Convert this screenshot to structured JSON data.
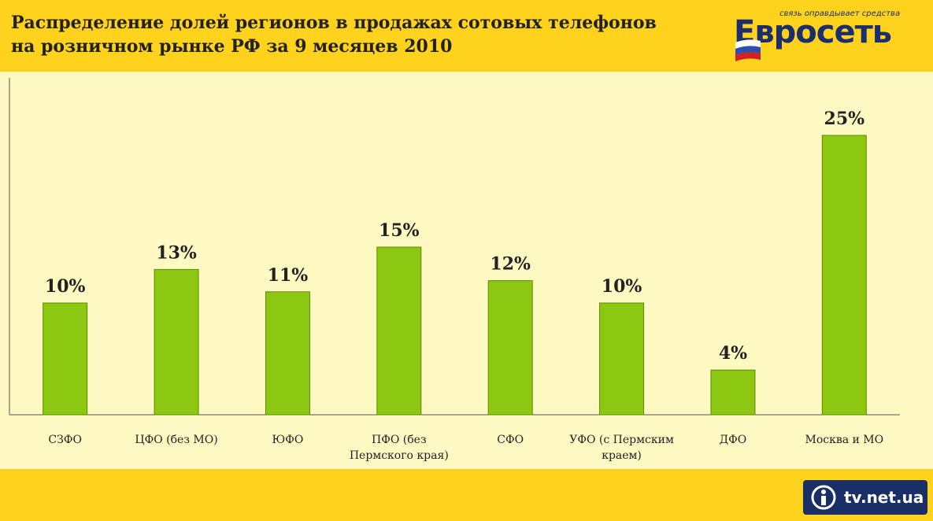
{
  "title": {
    "line1": "Распределение долей регионов в продажах сотовых телефонов",
    "line2": "на розничном рынке РФ за 9 месяцев 2010"
  },
  "logo": {
    "tagline": "связь оправдывает средства",
    "text": "Евросеть"
  },
  "watermark": {
    "text": "tv.net.ua"
  },
  "chart_data": {
    "type": "bar",
    "categories": [
      [
        "СЗФО"
      ],
      [
        "ЦФО (без МО)"
      ],
      [
        "ЮФО"
      ],
      [
        "ПФО (без",
        "Пермского края)"
      ],
      [
        "СФО"
      ],
      [
        "УФО (с Пермским",
        "краем)"
      ],
      [
        "ДФО"
      ],
      [
        "Москва и МО"
      ]
    ],
    "values": [
      10,
      13,
      11,
      15,
      12,
      10,
      4,
      25
    ],
    "data_labels": [
      "10%",
      "13%",
      "11%",
      "15%",
      "12%",
      "10%",
      "4%",
      "25%"
    ],
    "ylim": [
      0,
      30
    ],
    "grid": false,
    "legend": "none",
    "colors": {
      "bar": "#8CC812",
      "bar_stroke": "#5E8A00",
      "axis": "#555555"
    }
  }
}
